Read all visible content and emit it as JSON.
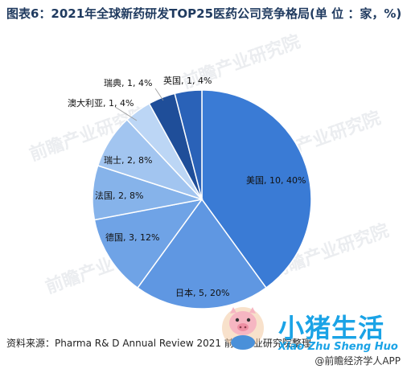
{
  "title": "图表6：2021年全球新药研发TOP25医药公司竞争格局(单 位 ：家，%)",
  "source": "资料来源：Pharma R& D Annual Review 2021 前瞻产业研究院整理",
  "watermark": "前瞻产业研究院",
  "brand": {
    "name": "小猪生活",
    "romanized": "Xiao Zhu Sheng Huo",
    "app": "@前瞻经济学人APP"
  },
  "colors": {
    "slices": [
      "#3a7bd5",
      "#5f97e2",
      "#6fa3e6",
      "#86b3ea",
      "#a2c5f0",
      "#bcd6f5",
      "#1f4e99",
      "#2a62b8"
    ]
  },
  "chart_data": {
    "type": "pie",
    "title": "",
    "slices": [
      {
        "name": "美国",
        "count": 10,
        "percent": 40,
        "label": "美国, 10, 40%"
      },
      {
        "name": "日本",
        "count": 5,
        "percent": 20,
        "label": "日本, 5, 20%"
      },
      {
        "name": "德国",
        "count": 3,
        "percent": 12,
        "label": "德国, 3, 12%"
      },
      {
        "name": "法国",
        "count": 2,
        "percent": 8,
        "label": "法国, 2, 8%"
      },
      {
        "name": "瑞士",
        "count": 2,
        "percent": 8,
        "label": "瑞士, 2, 8%"
      },
      {
        "name": "澳大利亚",
        "count": 1,
        "percent": 4,
        "label": "澳大利亚, 1, 4%"
      },
      {
        "name": "瑞典",
        "count": 1,
        "percent": 4,
        "label": "瑞典, 1, 4%"
      },
      {
        "name": "英国",
        "count": 1,
        "percent": 4,
        "label": "英国, 1, 4%"
      }
    ]
  }
}
